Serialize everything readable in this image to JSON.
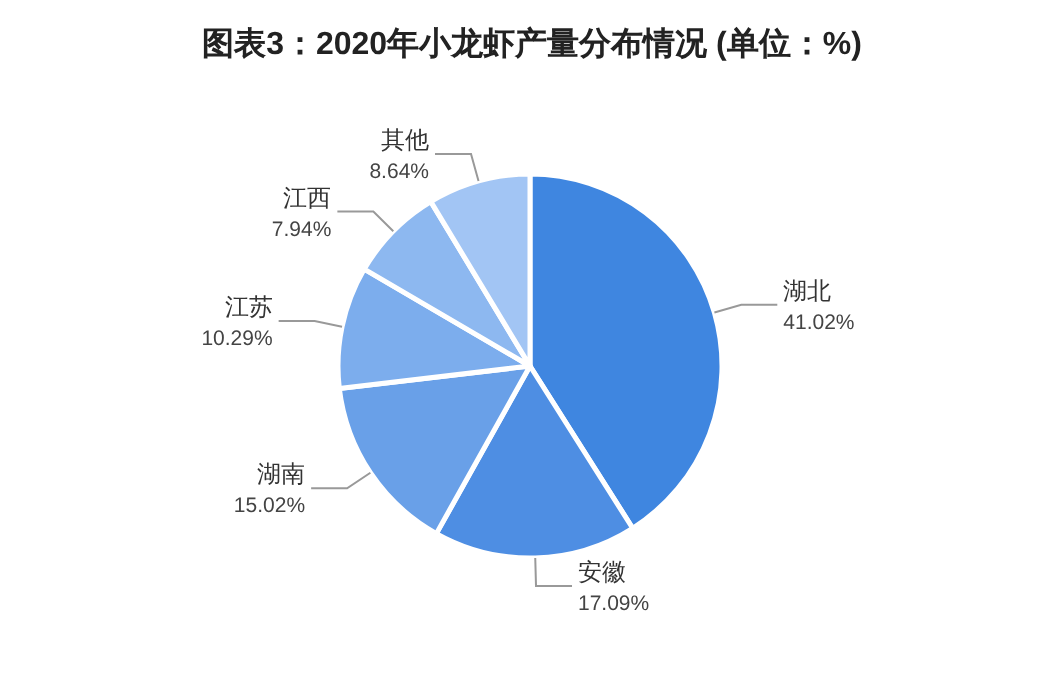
{
  "chart_data": {
    "type": "pie",
    "title": "图表3：2020年小龙虾产量分布情况 (单位：%)",
    "categories": [
      "湖北",
      "安徽",
      "湖南",
      "江苏",
      "江西",
      "其他"
    ],
    "values": [
      41.02,
      17.09,
      15.02,
      10.29,
      7.94,
      8.64
    ],
    "value_labels": [
      "41.02%",
      "17.09%",
      "15.02%",
      "10.29%",
      "7.94%",
      "8.64%"
    ],
    "colors": [
      "#3f86e0",
      "#4e8ee3",
      "#69a0e8",
      "#7caded",
      "#8db8f0",
      "#a2c5f4"
    ],
    "legend": false
  }
}
